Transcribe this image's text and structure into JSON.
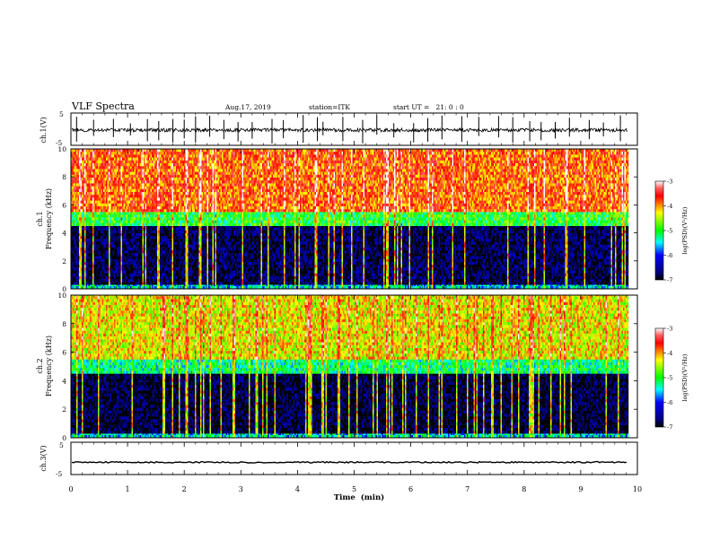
{
  "header": {
    "title": "VLF Spectra",
    "date": "Aug.17, 2019",
    "station": "station=ITK",
    "start": "start UT =   21: 0 : 0"
  },
  "chart_data": [
    {
      "type": "line",
      "name": "ch1-waveform",
      "ylabel": "ch.1(V)",
      "ylim": [
        -5,
        5
      ],
      "yticks": [
        "5",
        "-5"
      ],
      "xlim": [
        0,
        9.83
      ],
      "baseline": 0,
      "spike_times_min": [
        0.1,
        0.4,
        0.75,
        1.05,
        1.35,
        1.55,
        1.8,
        2.0,
        2.2,
        2.45,
        2.7,
        2.95,
        3.2,
        3.55,
        3.75,
        4.1,
        4.35,
        4.45,
        4.8,
        5.15,
        5.4,
        5.7,
        6.05,
        6.3,
        6.55,
        6.9,
        7.2,
        7.55,
        7.8,
        8.1,
        8.3,
        8.55,
        8.8,
        9.15,
        9.4,
        9.7
      ]
    },
    {
      "type": "heatmap",
      "name": "ch1-spectrogram",
      "ylabel": "ch.1\nFrequency  (kHz)",
      "xlim": [
        0,
        9.83
      ],
      "ylim": [
        0,
        10
      ],
      "yticks": [
        "0",
        "2",
        "4",
        "6",
        "8",
        "10"
      ],
      "bands_khz": [
        {
          "from": 0,
          "to": 0.3,
          "level": -5.5
        },
        {
          "from": 0.3,
          "to": 4.5,
          "level": -6.8
        },
        {
          "from": 4.5,
          "to": 5.5,
          "level": -5.0
        },
        {
          "from": 5.5,
          "to": 10,
          "level": -3.8
        }
      ],
      "colorbar": {
        "label": "log(PSD)(V²/Hz)",
        "ticks": [
          "-3",
          "-4",
          "-5",
          "-6",
          "-7"
        ],
        "range": [
          -7,
          -3
        ]
      }
    },
    {
      "type": "heatmap",
      "name": "ch2-spectrogram",
      "ylabel": "ch.2\nFrequency  (kHz)",
      "xlim": [
        0,
        9.83
      ],
      "ylim": [
        0,
        10
      ],
      "yticks": [
        "0",
        "2",
        "4",
        "6",
        "8",
        "10"
      ],
      "bands_khz": [
        {
          "from": 0,
          "to": 0.3,
          "level": -5.5
        },
        {
          "from": 0.3,
          "to": 4.5,
          "level": -6.9
        },
        {
          "from": 4.5,
          "to": 5.5,
          "level": -5.2
        },
        {
          "from": 5.5,
          "to": 10,
          "level": -4.3
        }
      ],
      "colorbar": {
        "label": "log(PSD)(V²/Hz)",
        "ticks": [
          "-3",
          "-4",
          "-5",
          "-6",
          "-7"
        ],
        "range": [
          -7,
          -3
        ]
      }
    },
    {
      "type": "line",
      "name": "ch3-waveform",
      "ylabel": "ch.3(V)",
      "ylim": [
        -5,
        5
      ],
      "yticks": [
        "5",
        "-5"
      ],
      "xlim": [
        0,
        9.83
      ],
      "baseline": -1.2
    }
  ],
  "xaxis": {
    "label": "Time  (min)",
    "range": [
      0,
      10
    ],
    "ticks": [
      "0",
      "1",
      "2",
      "3",
      "4",
      "5",
      "6",
      "7",
      "8",
      "9",
      "10"
    ]
  }
}
